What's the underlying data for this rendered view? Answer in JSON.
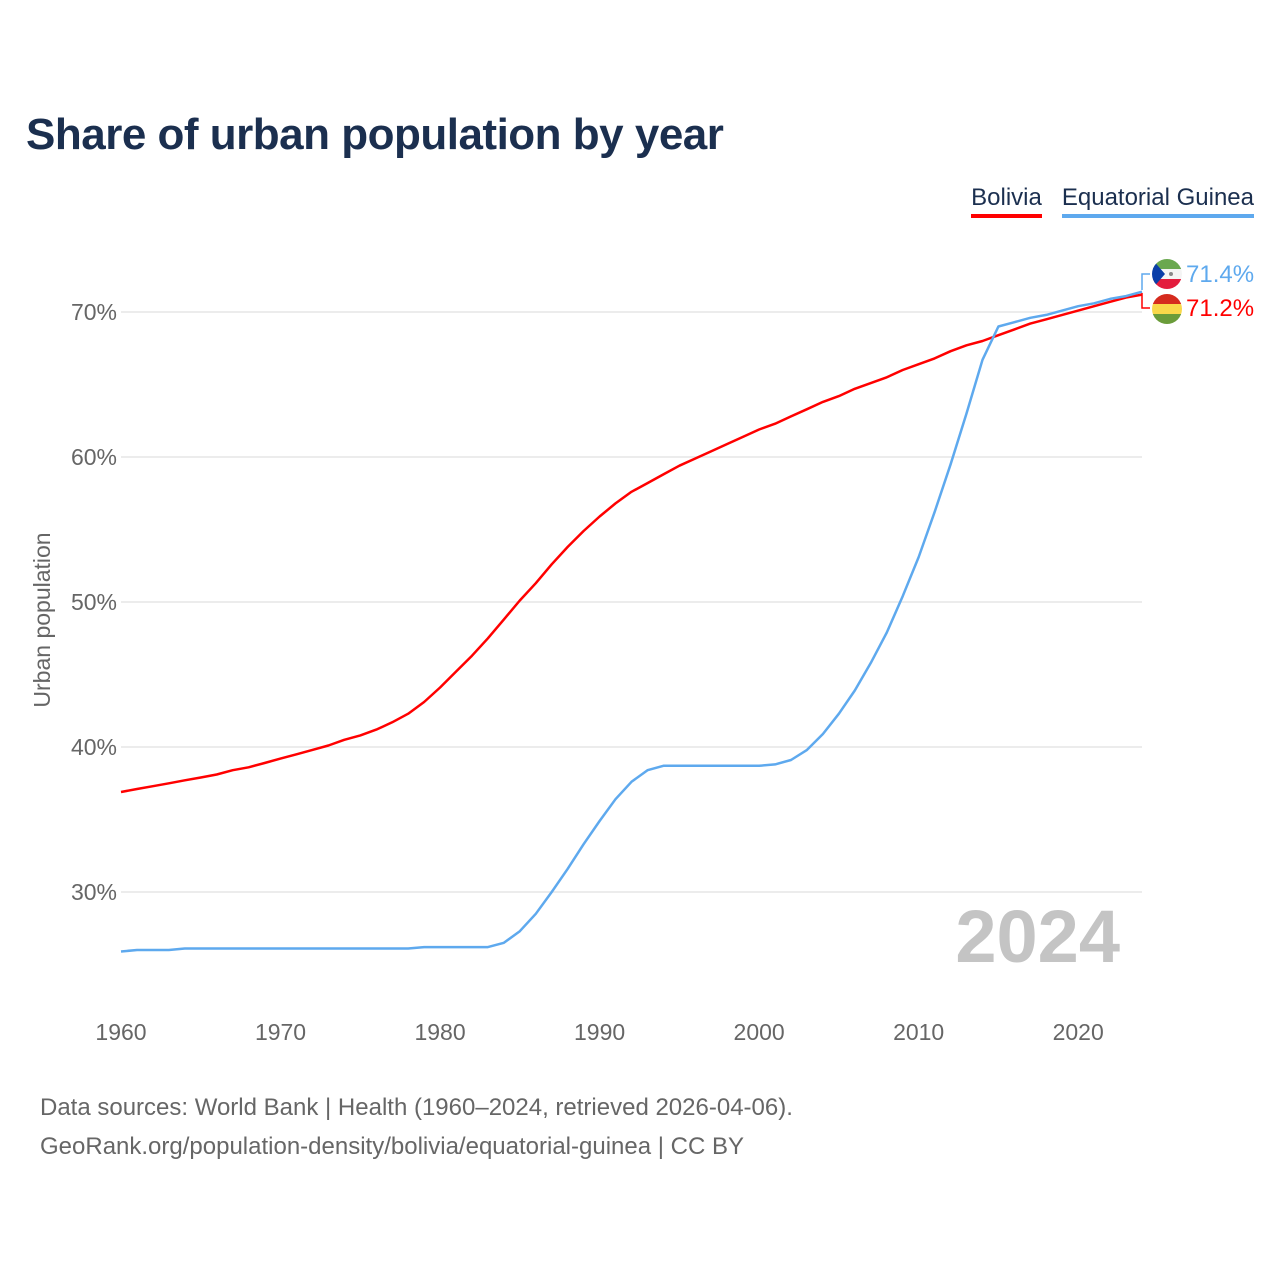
{
  "chart_data": {
    "type": "line",
    "title": "Share of urban population by year",
    "xlabel": "",
    "ylabel": "Urban population",
    "xlim": [
      1960,
      2024
    ],
    "ylim": [
      23,
      74
    ],
    "grid": true,
    "legend_position": "top-right",
    "x_ticks": [
      "1960",
      "1970",
      "1980",
      "1990",
      "2000",
      "2010",
      "2020"
    ],
    "y_ticks": [
      {
        "v": 30,
        "label": "30%"
      },
      {
        "v": 40,
        "label": "40%"
      },
      {
        "v": 50,
        "label": "50%"
      },
      {
        "v": 60,
        "label": "60%"
      },
      {
        "v": 70,
        "label": "70%"
      }
    ],
    "watermark_year": "2024",
    "x": [
      1960,
      1961,
      1962,
      1963,
      1964,
      1965,
      1966,
      1967,
      1968,
      1969,
      1970,
      1971,
      1972,
      1973,
      1974,
      1975,
      1976,
      1977,
      1978,
      1979,
      1980,
      1981,
      1982,
      1983,
      1984,
      1985,
      1986,
      1987,
      1988,
      1989,
      1990,
      1991,
      1992,
      1993,
      1994,
      1995,
      1996,
      1997,
      1998,
      1999,
      2000,
      2001,
      2002,
      2003,
      2004,
      2005,
      2006,
      2007,
      2008,
      2009,
      2010,
      2011,
      2012,
      2013,
      2014,
      2015,
      2016,
      2017,
      2018,
      2019,
      2020,
      2021,
      2022,
      2023,
      2024
    ],
    "series": [
      {
        "name": "Bolivia",
        "color": "#ff0000",
        "end_label": "71.2%",
        "values": [
          36.9,
          37.1,
          37.3,
          37.5,
          37.7,
          37.9,
          38.1,
          38.4,
          38.6,
          38.9,
          39.2,
          39.5,
          39.8,
          40.1,
          40.5,
          40.8,
          41.2,
          41.7,
          42.3,
          43.1,
          44.1,
          45.2,
          46.3,
          47.5,
          48.8,
          50.1,
          51.3,
          52.6,
          53.8,
          54.9,
          55.9,
          56.8,
          57.6,
          58.2,
          58.8,
          59.4,
          59.9,
          60.4,
          60.9,
          61.4,
          61.9,
          62.3,
          62.8,
          63.3,
          63.8,
          64.2,
          64.7,
          65.1,
          65.5,
          66.0,
          66.4,
          66.8,
          67.3,
          67.7,
          68.0,
          68.4,
          68.8,
          69.2,
          69.5,
          69.8,
          70.1,
          70.4,
          70.7,
          71.0,
          71.2
        ]
      },
      {
        "name": "Equatorial Guinea",
        "color": "#5ea9ee",
        "end_label": "71.4%",
        "values": [
          25.9,
          26.0,
          26.0,
          26.0,
          26.1,
          26.1,
          26.1,
          26.1,
          26.1,
          26.1,
          26.1,
          26.1,
          26.1,
          26.1,
          26.1,
          26.1,
          26.1,
          26.1,
          26.1,
          26.2,
          26.2,
          26.2,
          26.2,
          26.2,
          26.5,
          27.3,
          28.5,
          30.0,
          31.6,
          33.3,
          34.9,
          36.4,
          37.6,
          38.4,
          38.7,
          38.7,
          38.7,
          38.7,
          38.7,
          38.7,
          38.7,
          38.8,
          39.1,
          39.8,
          40.9,
          42.3,
          43.9,
          45.8,
          47.9,
          50.4,
          53.1,
          56.2,
          59.5,
          63.0,
          66.7,
          69.0,
          69.3,
          69.6,
          69.8,
          70.1,
          70.4,
          70.6,
          70.9,
          71.1,
          71.4
        ]
      }
    ]
  },
  "footer": {
    "line1": "Data sources: World Bank | Health (1960–2024, retrieved 2026-04-06).",
    "line2": "GeoRank.org/population-density/bolivia/equatorial-guinea | CC BY"
  }
}
